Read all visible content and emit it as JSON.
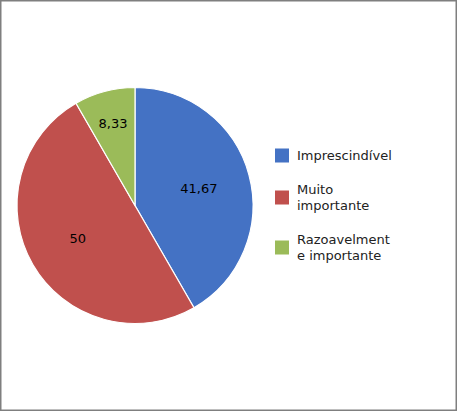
{
  "chart_data": {
    "type": "pie",
    "categories": [
      "Imprescindível",
      "Muito\nimportante",
      "Razoavelment\ne importante"
    ],
    "values": [
      41.67,
      50,
      8.33
    ],
    "value_labels": [
      "41,67",
      "50",
      "8,33"
    ],
    "colors": [
      "#4472C4",
      "#C0504D",
      "#9BBB59"
    ],
    "data_labels": true,
    "legend": "right"
  }
}
